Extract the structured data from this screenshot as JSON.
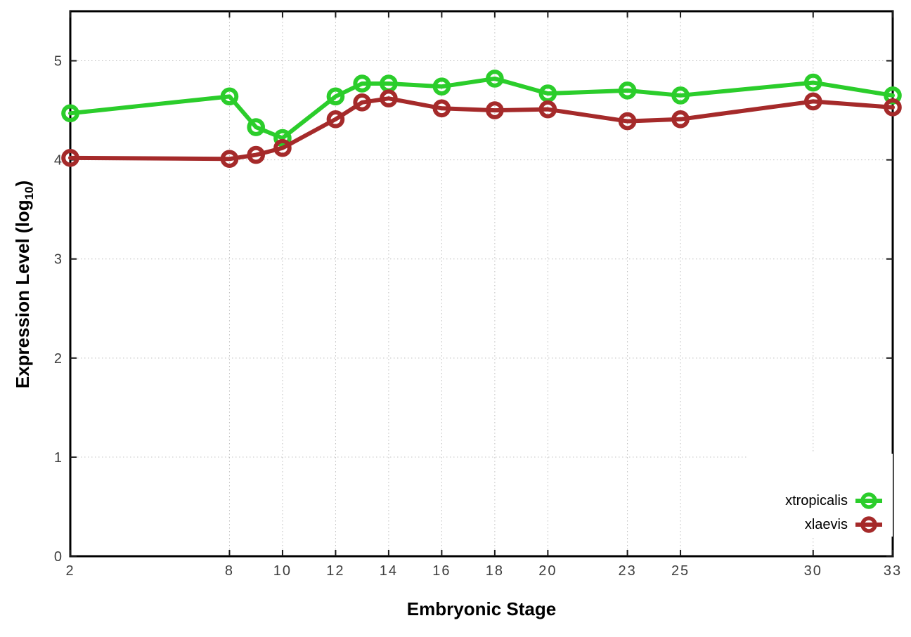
{
  "chart_data": {
    "type": "line",
    "title": "",
    "xlabel": "Embryonic Stage",
    "ylabel": "Expression Level (log10)",
    "ylabel_parts": [
      "Expression Level (log",
      "10",
      ")"
    ],
    "x": [
      2,
      8,
      9,
      10,
      12,
      13,
      14,
      16,
      18,
      20,
      23,
      25,
      30,
      33
    ],
    "xticks": [
      2,
      8,
      10,
      12,
      14,
      16,
      18,
      20,
      23,
      25,
      30,
      33
    ],
    "yticks": [
      0,
      1,
      2,
      3,
      4,
      5
    ],
    "xlim": [
      2,
      33
    ],
    "ylim": [
      0,
      5.5
    ],
    "grid": true,
    "legend_position": "bottom-right-inside",
    "marker": "open-circle",
    "series": [
      {
        "name": "xtropicalis",
        "color": "#2bcd2b",
        "values": [
          4.47,
          4.64,
          4.33,
          4.22,
          4.64,
          4.77,
          4.77,
          4.74,
          4.82,
          4.67,
          4.7,
          4.65,
          4.78,
          4.65
        ]
      },
      {
        "name": "xlaevis",
        "color": "#a52a2a",
        "values": [
          4.02,
          4.01,
          4.05,
          4.12,
          4.41,
          4.58,
          4.62,
          4.52,
          4.5,
          4.51,
          4.39,
          4.41,
          4.59,
          4.53
        ]
      }
    ]
  },
  "styles": {
    "axis_color": "#000000",
    "tick_color": "#1a1a1a",
    "tick_label_color": "#3d3d3d",
    "grid_color": "#bdbdbd",
    "background": "#ffffff"
  }
}
